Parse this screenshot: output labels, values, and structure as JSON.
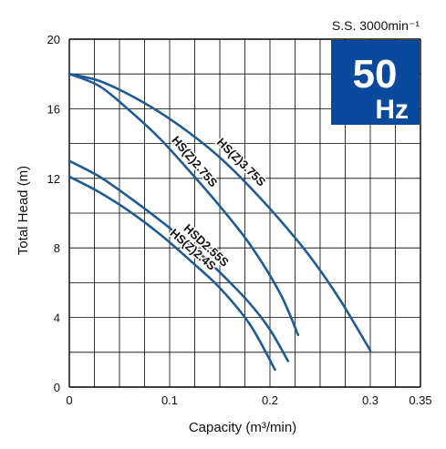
{
  "chart_data": {
    "type": "line",
    "title": "",
    "xlabel": "Capacity (m³/min)",
    "ylabel": "Total Head (m)",
    "xlim": [
      0,
      0.35
    ],
    "ylim": [
      0,
      20
    ],
    "x_ticks": [
      "0",
      "0.1",
      "0.2",
      "0.3",
      "0.35"
    ],
    "x_tick_values": [
      0,
      0.1,
      0.2,
      0.3,
      0.35
    ],
    "y_ticks": [
      "0",
      "4",
      "8",
      "12",
      "16",
      "20"
    ],
    "y_tick_values": [
      0,
      4,
      8,
      12,
      16,
      20
    ],
    "grid": true,
    "speed_label": "S.S. 3000min⁻¹",
    "badge": {
      "line1": "50",
      "line2": "Hz",
      "color": "#0a4a9c"
    },
    "curve_color": "#1f5a92",
    "series": [
      {
        "name": "HS(Z)3.75S",
        "x": [
          0,
          0.03,
          0.06,
          0.09,
          0.12,
          0.15,
          0.18,
          0.21,
          0.24,
          0.27,
          0.3
        ],
        "y": [
          18,
          17.6,
          16.8,
          15.8,
          14.6,
          13.2,
          11.5,
          9.6,
          7.5,
          5,
          2.1
        ]
      },
      {
        "name": "HS(Z)2.75S",
        "x": [
          0,
          0.03,
          0.06,
          0.09,
          0.12,
          0.15,
          0.18,
          0.21,
          0.228
        ],
        "y": [
          18,
          17.3,
          15.9,
          14.3,
          12.4,
          10.4,
          8.2,
          5.4,
          3
        ]
      },
      {
        "name": "HSD2.55S",
        "x": [
          0,
          0.03,
          0.06,
          0.09,
          0.12,
          0.15,
          0.18,
          0.2,
          0.218
        ],
        "y": [
          13,
          12.1,
          10.9,
          9.6,
          8.2,
          6.6,
          4.8,
          3.3,
          1.5
        ]
      },
      {
        "name": "HS(Z)2.4S",
        "x": [
          0,
          0.03,
          0.06,
          0.09,
          0.12,
          0.15,
          0.18,
          0.205
        ],
        "y": [
          12.1,
          11.2,
          10.1,
          8.8,
          7.3,
          5.7,
          3.6,
          1
        ]
      }
    ]
  }
}
